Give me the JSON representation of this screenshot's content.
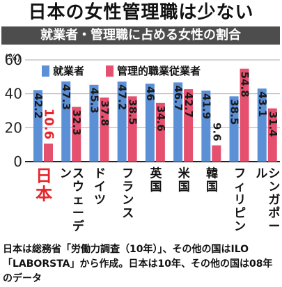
{
  "headline": "日本の女性管理職は少ない",
  "chart_data": {
    "type": "bar",
    "title": "就業者・管理職に占める女性の割合",
    "ylabel": "",
    "unit": "(%)",
    "ylim": [
      0,
      60
    ],
    "yticks": [
      0,
      20,
      40,
      60
    ],
    "legend_position": "top",
    "categories": [
      "日本",
      "スウェーデン",
      "ドイツ",
      "フランス",
      "英国",
      "米国",
      "韓国",
      "フィリピン",
      "シンガポール"
    ],
    "series": [
      {
        "name": "就業者",
        "color": "#5b8fd6",
        "values": [
          42.2,
          47.3,
          45.3,
          47.2,
          46.0,
          46.7,
          41.9,
          38.5,
          43.1
        ]
      },
      {
        "name": "管理的職業従業者",
        "color": "#e5506e",
        "values": [
          10.6,
          32.3,
          37.8,
          38.5,
          34.6,
          42.7,
          9.6,
          54.8,
          31.4
        ]
      }
    ],
    "highlight_category": "日本",
    "highlight_color": "#e8242a"
  },
  "footnote": "日本は総務省「労働力調査（10年）」、その他の国はILO「LABORSTA」から作成。日本は10年、その他の国は08年のデータ"
}
